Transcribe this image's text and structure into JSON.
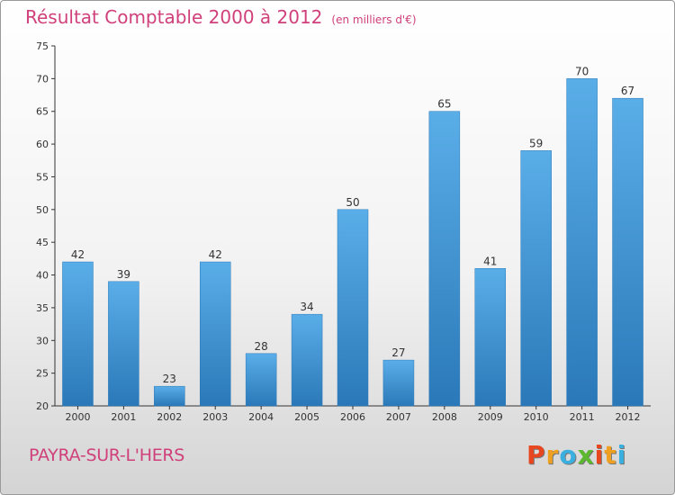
{
  "chart_data": {
    "type": "bar",
    "title": "Résultat Comptable 2000 à 2012",
    "subtitle": "(en milliers d'€)",
    "categories": [
      "2000",
      "2001",
      "2002",
      "2003",
      "2004",
      "2005",
      "2006",
      "2007",
      "2008",
      "2009",
      "2010",
      "2011",
      "2012"
    ],
    "values": [
      42,
      39,
      23,
      42,
      28,
      34,
      50,
      27,
      65,
      41,
      59,
      70,
      67
    ],
    "ylim": [
      20,
      75
    ],
    "yticks": [
      20,
      25,
      30,
      35,
      40,
      45,
      50,
      55,
      60,
      65,
      70,
      75
    ],
    "grid": false,
    "bar_color_light": "#5aaee8",
    "bar_color_dark": "#2a78b8"
  },
  "footer": {
    "commune": "PAYRA-SUR-L'HERS",
    "brand_letters": [
      {
        "char": "P",
        "color": "#e8461e"
      },
      {
        "char": "r",
        "color": "#f0a020"
      },
      {
        "char": "o",
        "color": "#3ab0e0"
      },
      {
        "char": "x",
        "color": "#5cb82e"
      },
      {
        "char": "i",
        "color": "#e8461e"
      },
      {
        "char": "t",
        "color": "#f0a020"
      },
      {
        "char": "i",
        "color": "#3ab0e0"
      }
    ]
  }
}
